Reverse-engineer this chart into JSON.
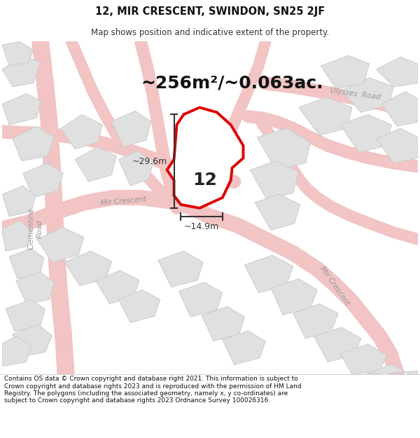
{
  "title": "12, MIR CRESCENT, SWINDON, SN25 2JF",
  "subtitle": "Map shows position and indicative extent of the property.",
  "area_label": "~256m²/~0.063ac.",
  "property_number": "12",
  "dim_width": "~14.9m",
  "dim_height": "~29.6m",
  "footer": "Contains OS data © Crown copyright and database right 2021. This information is subject to Crown copyright and database rights 2023 and is reproduced with the permission of HM Land Registry. The polygons (including the associated geometry, namely x, y co-ordinates) are subject to Crown copyright and database rights 2023 Ordnance Survey 100026316.",
  "map_bg": "#f7f7f7",
  "road_color": "#f2c4c4",
  "road_outline": "#e8a0a0",
  "highlight_color": "#dd0000",
  "highlight_fill": "#ffffff",
  "building_fill": "#e0e0e0",
  "building_stroke": "#cccccc",
  "dim_line_color": "#333333",
  "label_color": "#333333",
  "road_label_color": "#999999"
}
